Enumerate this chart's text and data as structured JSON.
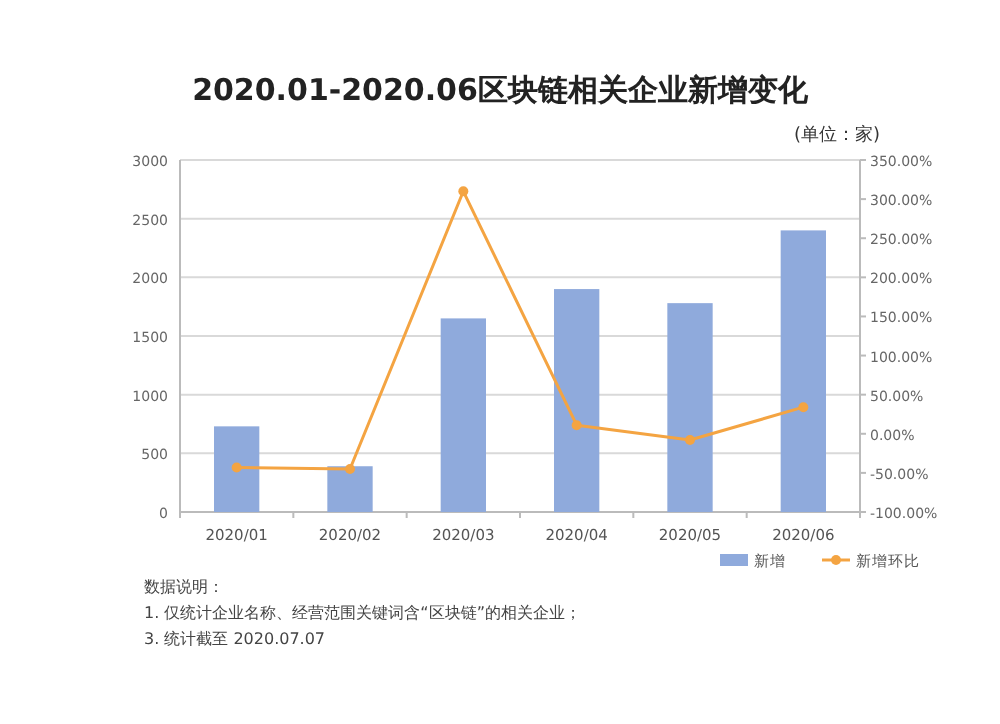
{
  "chart_data": {
    "type": "bar",
    "title": "2020.01-2020.06区块链相关企业新增变化",
    "subtitle": "(单位：家)",
    "categories": [
      "2020/01",
      "2020/02",
      "2020/03",
      "2020/04",
      "2020/05",
      "2020/06"
    ],
    "series": [
      {
        "name": "新增",
        "color": "#8faadc",
        "values": [
          730,
          390,
          1650,
          1900,
          1780,
          2400
        ]
      },
      {
        "name": "新增环比",
        "type": "line",
        "axis": "y2",
        "color": "#f4a442",
        "marker": "circle",
        "values": [
          -43,
          -45,
          310,
          11,
          -8,
          34
        ]
      }
    ],
    "ylim": [
      0,
      3000
    ],
    "yticks": [
      0,
      500,
      1000,
      1500,
      2000,
      2500,
      3000
    ],
    "y2lim": [
      -100,
      350
    ],
    "y2ticks": [
      {
        "value": -100,
        "label": "-100.00%"
      },
      {
        "value": -50,
        "label": "-50.00%"
      },
      {
        "value": 0,
        "label": "0.00%"
      },
      {
        "value": 50,
        "label": "50.00%"
      },
      {
        "value": 100,
        "label": "100.00%"
      },
      {
        "value": 150,
        "label": "150.00%"
      },
      {
        "value": 200,
        "label": "200.00%"
      },
      {
        "value": 250,
        "label": "250.00%"
      },
      {
        "value": 300,
        "label": "300.00%"
      },
      {
        "value": 350,
        "label": "350.00%"
      }
    ],
    "grid": "y",
    "legend": "bottom right",
    "annotations": [
      "数据说明：",
      "1. 仅统计企业名称、经营范围关键词含“区块链”的相关企业；",
      "3. 统计截至 2020.07.07"
    ]
  }
}
